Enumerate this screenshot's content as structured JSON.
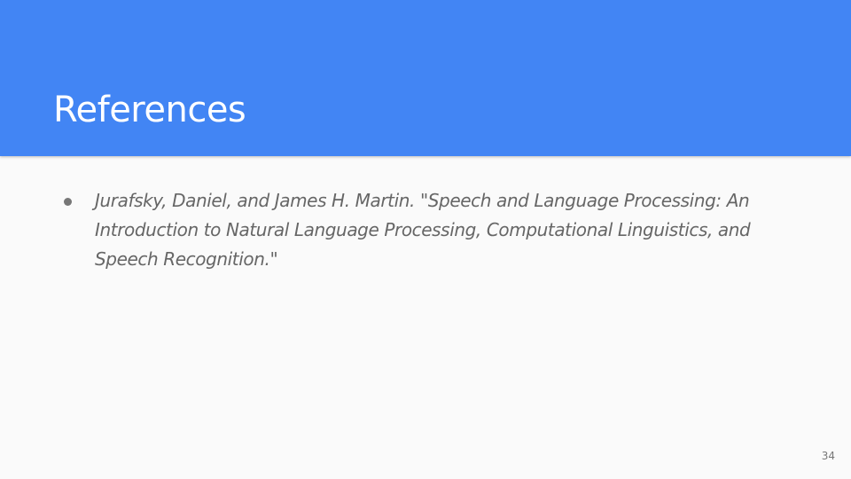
{
  "slide": {
    "title": "References",
    "page_number": "34",
    "references": [
      {
        "text": "Jurafsky, Daniel, and James H. Martin. \"Speech and Language Processing: An Introduction to Natural Language Processing, Computational Linguistics, and Speech Recognition.\""
      }
    ]
  },
  "colors": {
    "header_background": "#4285f4",
    "slide_background": "#fafafa",
    "title_text": "#ffffff",
    "body_text": "#666666"
  }
}
